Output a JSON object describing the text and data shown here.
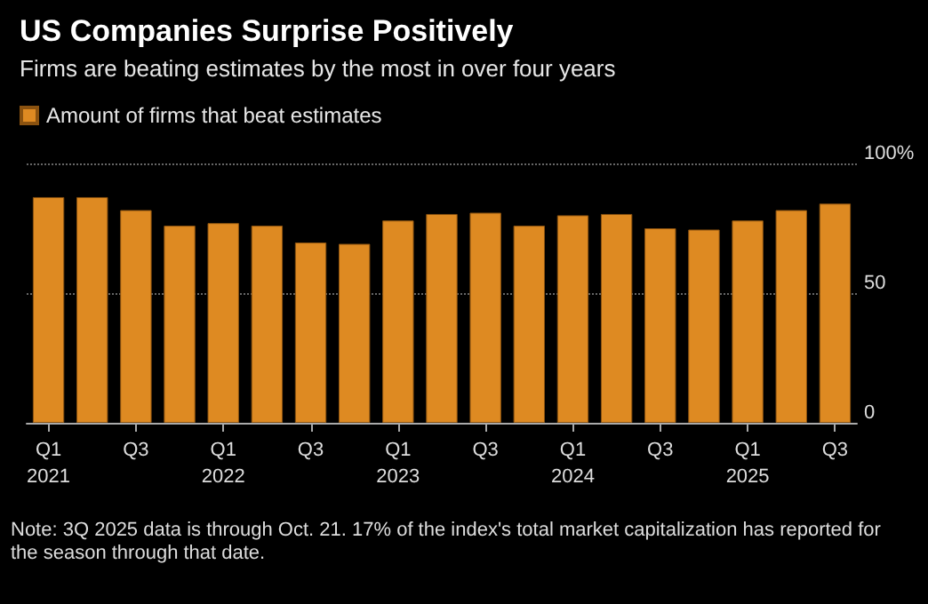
{
  "chart_data": {
    "type": "bar",
    "title": "US Companies Surprise Positively",
    "subtitle": "Firms are beating estimates by the most in over four years",
    "categories": [
      "Q1\n2021",
      null,
      "Q3",
      null,
      "Q1\n2022",
      null,
      "Q3",
      null,
      "Q1\n2023",
      null,
      "Q3",
      null,
      "Q1\n2024",
      null,
      "Q3",
      null,
      "Q1\n2025",
      null,
      "Q3"
    ],
    "series": [
      {
        "name": "Amount of firms that beat estimates",
        "color": "#de8a22",
        "values": [
          87,
          87,
          82,
          76,
          77,
          76,
          69.5,
          69,
          78,
          80.5,
          81,
          76,
          80,
          80.5,
          75,
          74.5,
          78,
          82,
          84.5
        ]
      }
    ],
    "ylim": [
      0,
      100
    ],
    "yticks": [
      0,
      50,
      {
        "value": 100,
        "label": "100%"
      }
    ],
    "grid": "y",
    "legend": "top left",
    "annotations": [
      "Note: 3Q 2025 data is through Oct. 21. 17% of the index's total market capitalization has reported for the season through that date."
    ]
  }
}
